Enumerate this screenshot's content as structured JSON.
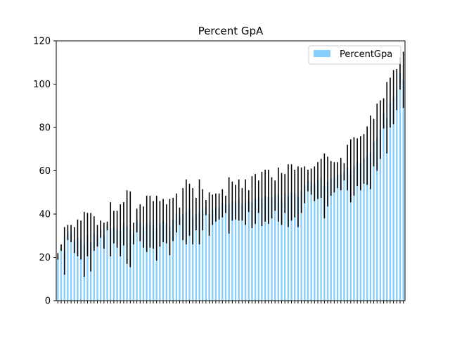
{
  "chart_data": {
    "type": "bar",
    "title": "Percent GpA",
    "xlabel": "",
    "ylabel": "",
    "ylim": [
      0,
      120
    ],
    "yticks": [
      0,
      20,
      40,
      60,
      80,
      100,
      120
    ],
    "grid": false,
    "legend": {
      "position": "top-right",
      "entries": [
        "PercentGpa"
      ]
    },
    "colors": {
      "bar": "#87cefa",
      "error": "#000000",
      "axis": "#000000"
    },
    "series": [
      {
        "name": "PercentGpa",
        "values": [
          20.5,
          24.5,
          23.0,
          31.5,
          31.0,
          28.0,
          29.0,
          28.0,
          26.0,
          30.5,
          27.0,
          31.0,
          30.0,
          33.0,
          30.0,
          34.5,
          33.0,
          34.0,
          33.0,
          32.5,
          35.5,
          34.0,
          33.0,
          31.0,
          37.0,
          36.0,
          34.0,
          35.5,
          36.5,
          35.0,
          33.5,
          35.5,
          37.0,
          35.5,
          34.0,
          37.5,
          40.5,
          39.0,
          40.0,
          41.0,
          42.0,
          39.0,
          40.0,
          41.0,
          42.0,
          43.0,
          40.0,
          42.0,
          43.0,
          43.5,
          45.0,
          44.5,
          44.0,
          46.0,
          45.5,
          46.5,
          44.5,
          45.5,
          46.0,
          45.5,
          47.0,
          48.0,
          47.0,
          48.5,
          48.0,
          47.5,
          48.5,
          49.0,
          47.0,
          49.5,
          48.5,
          50.0,
          49.5,
          48.0,
          51.0,
          53.5,
          55.5,
          55.0,
          54.0,
          55.5,
          56.5,
          53.0,
          55.0,
          56.5,
          57.0,
          58.0,
          58.5,
          59.5,
          61.5,
          60.0,
          62.0,
          64.0,
          63.5,
          65.5,
          67.0,
          68.5,
          73.0,
          75.5,
          79.0,
          86.5,
          84.5,
          91.5,
          94.0,
          97.5,
          105.0,
          102.0
        ],
        "errors": [
          1.5,
          1.5,
          11.0,
          3.5,
          4.0,
          6.0,
          8.5,
          9.0,
          15.0,
          10.0,
          13.5,
          8.0,
          5.0,
          4.0,
          6.0,
          2.0,
          12.5,
          7.5,
          8.5,
          12.0,
          10.0,
          17.0,
          17.5,
          5.0,
          5.5,
          8.5,
          9.5,
          13.0,
          12.0,
          11.0,
          15.0,
          10.5,
          10.0,
          9.0,
          13.0,
          10.0,
          9.0,
          4.0,
          12.0,
          15.0,
          12.0,
          13.0,
          7.5,
          15.0,
          9.5,
          3.5,
          10.0,
          7.0,
          6.5,
          6.0,
          6.5,
          4.0,
          13.0,
          9.0,
          8.0,
          9.5,
          7.5,
          10.5,
          5.0,
          12.0,
          11.5,
          7.5,
          12.5,
          12.0,
          12.5,
          9.5,
          7.0,
          12.5,
          12.0,
          9.0,
          14.5,
          13.0,
          11.0,
          14.0,
          10.5,
          8.5,
          5.0,
          6.0,
          8.0,
          8.5,
          9.0,
          15.0,
          11.5,
          8.0,
          7.0,
          6.0,
          7.5,
          4.0,
          10.5,
          14.5,
          13.5,
          11.0,
          12.5,
          11.5,
          13.5,
          17.0,
          11.0,
          15.5,
          13.5,
          7.0,
          16.5,
          11.5,
          12.5,
          9.5,
          7.5,
          13.0
        ]
      }
    ]
  }
}
